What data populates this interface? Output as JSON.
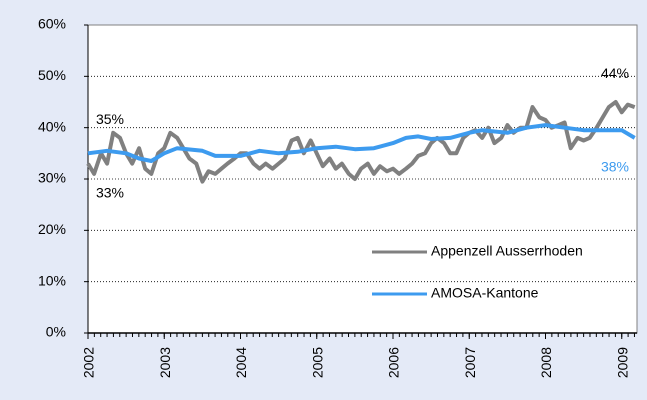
{
  "chart_data": {
    "type": "line",
    "xlim": [
      2002,
      2009.2
    ],
    "xticks": [
      2002,
      2003,
      2004,
      2005,
      2006,
      2007,
      2008,
      2009
    ],
    "ylim": [
      0,
      60
    ],
    "yticks": [
      {
        "value": 0,
        "label": "0%"
      },
      {
        "value": 10,
        "label": "10%"
      },
      {
        "value": 20,
        "label": "20%"
      },
      {
        "value": 30,
        "label": "30%"
      },
      {
        "value": 40,
        "label": "40%"
      },
      {
        "value": 50,
        "label": "50%"
      },
      {
        "value": 60,
        "label": "60%"
      }
    ],
    "grid": true,
    "legend": "lower right",
    "series": [
      {
        "name": "Appenzell Ausserrhoden",
        "color": "#808080",
        "x": [
          2002,
          2002.08,
          2002.17,
          2002.25,
          2002.33,
          2002.42,
          2002.5,
          2002.58,
          2002.67,
          2002.75,
          2002.83,
          2002.92,
          2003,
          2003.08,
          2003.17,
          2003.25,
          2003.33,
          2003.42,
          2003.5,
          2003.58,
          2003.67,
          2003.75,
          2003.83,
          2003.92,
          2004,
          2004.08,
          2004.17,
          2004.25,
          2004.33,
          2004.42,
          2004.5,
          2004.58,
          2004.67,
          2004.75,
          2004.83,
          2004.92,
          2005,
          2005.08,
          2005.17,
          2005.25,
          2005.33,
          2005.42,
          2005.5,
          2005.58,
          2005.67,
          2005.75,
          2005.83,
          2005.92,
          2006,
          2006.08,
          2006.17,
          2006.25,
          2006.33,
          2006.42,
          2006.5,
          2006.58,
          2006.67,
          2006.75,
          2006.83,
          2006.92,
          2007,
          2007.08,
          2007.17,
          2007.25,
          2007.33,
          2007.42,
          2007.5,
          2007.58,
          2007.67,
          2007.75,
          2007.83,
          2007.92,
          2008,
          2008.08,
          2008.17,
          2008.25,
          2008.33,
          2008.42,
          2008.5,
          2008.58,
          2008.67,
          2008.75,
          2008.83,
          2008.92,
          2009,
          2009.08,
          2009.17
        ],
        "values": [
          33,
          31,
          35,
          33,
          39,
          38,
          35,
          33,
          36,
          32,
          31,
          35,
          36,
          39,
          38,
          36,
          34,
          33,
          29.5,
          31.5,
          31,
          32,
          33,
          34,
          35,
          35,
          33,
          32,
          33,
          32,
          33,
          34,
          37.5,
          38,
          35,
          37.5,
          35,
          32.5,
          34,
          32,
          33,
          31,
          30,
          32,
          33,
          31,
          32.5,
          31.5,
          32,
          31,
          32,
          33,
          34.5,
          35,
          37,
          38,
          37,
          35,
          35,
          38,
          39,
          39.5,
          38,
          40,
          37,
          38,
          40.5,
          39,
          40,
          40,
          44,
          42,
          41.5,
          40,
          40.5,
          41,
          36,
          38,
          37.5,
          38,
          40,
          42,
          44,
          45,
          43,
          44.5,
          44
        ]
      },
      {
        "name": "AMOSA-Kantone",
        "color": "#3d9bef",
        "x": [
          2002,
          2002.25,
          2002.5,
          2002.67,
          2002.83,
          2003,
          2003.17,
          2003.5,
          2003.67,
          2004,
          2004.25,
          2004.5,
          2004.75,
          2005,
          2005.25,
          2005.5,
          2005.75,
          2006,
          2006.17,
          2006.33,
          2006.5,
          2006.75,
          2007,
          2007.17,
          2007.5,
          2007.75,
          2008,
          2008.25,
          2008.5,
          2008.75,
          2009,
          2009.17
        ],
        "values": [
          35,
          35.5,
          35,
          34,
          33.5,
          35,
          36,
          35.5,
          34.5,
          34.5,
          35.5,
          35,
          35.3,
          36,
          36.3,
          35.8,
          36,
          37,
          38,
          38.3,
          37.8,
          38,
          39,
          39.5,
          39,
          40,
          40.5,
          40,
          39.5,
          39.5,
          39.5,
          38
        ]
      }
    ],
    "annotations": [
      {
        "text": "35%",
        "x": 2002,
        "y": 35,
        "color": "#000000",
        "side": "above"
      },
      {
        "text": "33%",
        "x": 2002,
        "y": 33,
        "color": "#000000",
        "side": "below"
      },
      {
        "text": "44%",
        "x": 2009.17,
        "y": 44,
        "color": "#000000",
        "side": "above"
      },
      {
        "text": "38%",
        "x": 2009.17,
        "y": 38,
        "color": "#3d9bef",
        "side": "below"
      }
    ]
  }
}
